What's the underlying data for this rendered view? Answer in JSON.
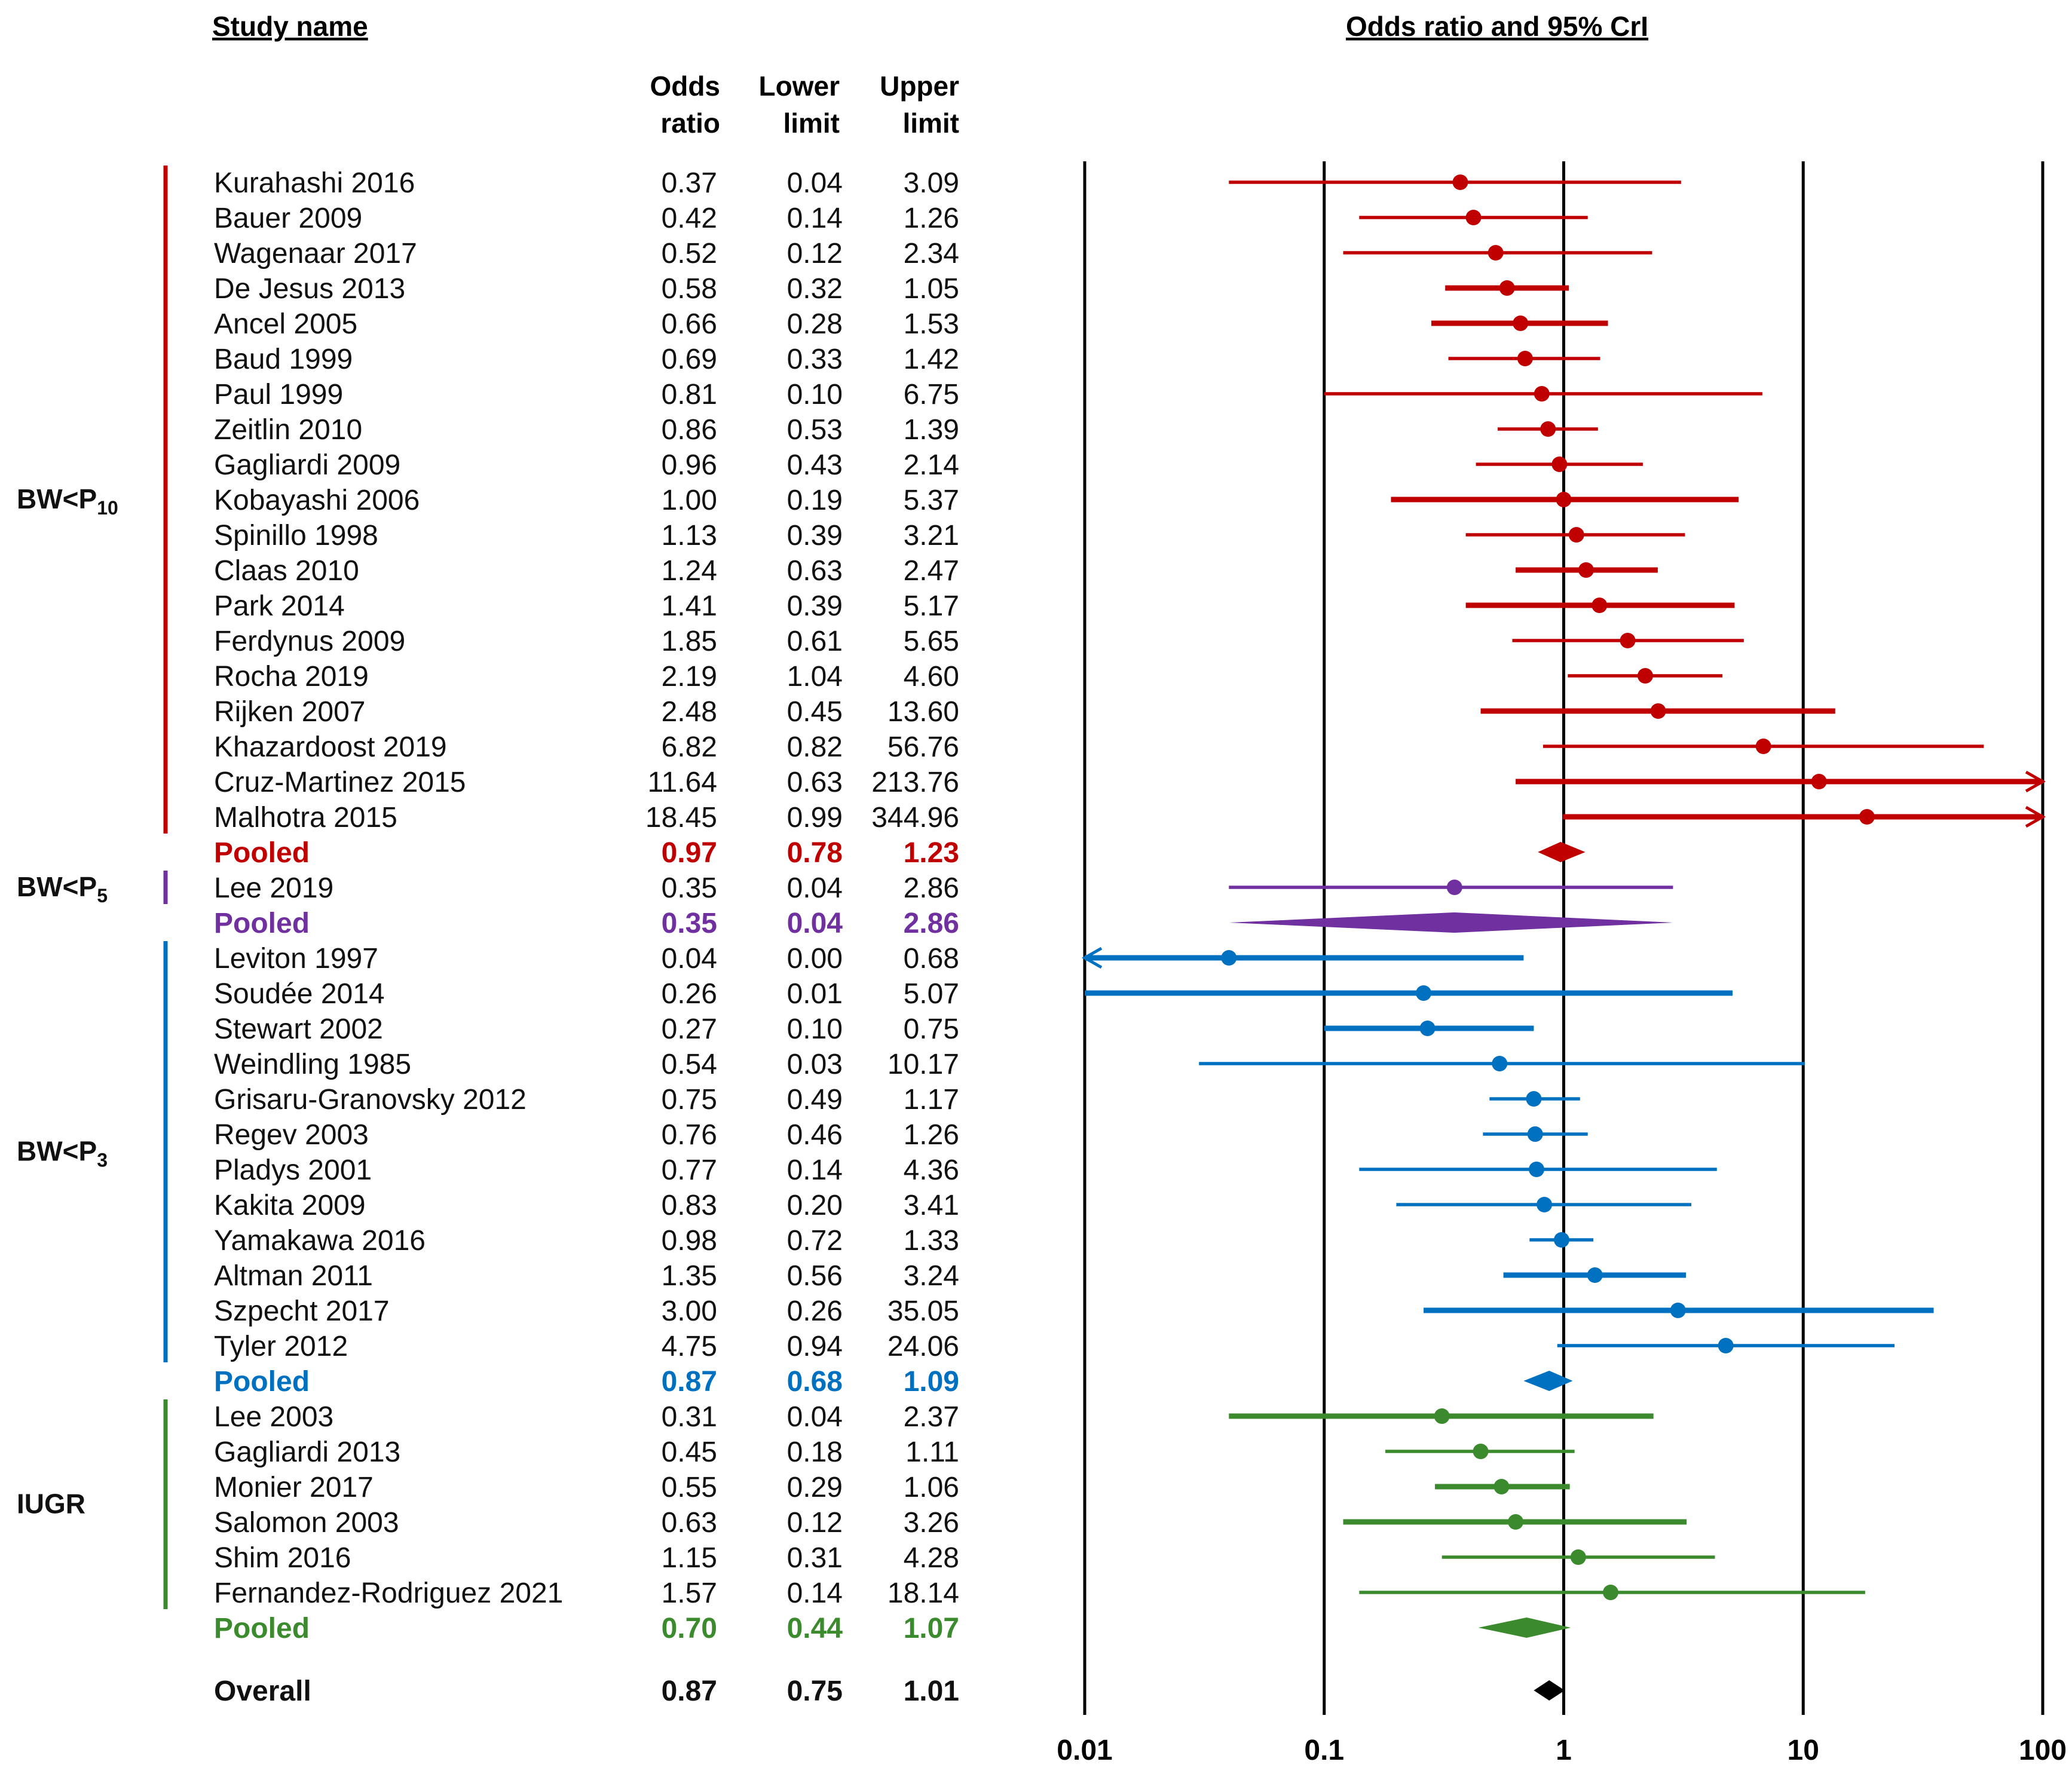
{
  "chart_data": {
    "type": "forest",
    "title": "Odds ratio and 95% CrI",
    "columns": {
      "study": "Study name",
      "or": [
        "Odds",
        "ratio"
      ],
      "lower": [
        "Lower",
        "limit"
      ],
      "upper": [
        "Upper",
        "limit"
      ]
    },
    "x_axis": {
      "scale": "log10",
      "range": [
        0.01,
        100
      ],
      "ticks": [
        "0.01",
        "0.1",
        "1",
        "10",
        "100"
      ],
      "reference_line": 1
    },
    "colors": {
      "bw10": "#c00000",
      "bw5": "#7030a0",
      "bw3": "#0070c0",
      "iugr": "#3c8a2e",
      "overall": "#000000"
    },
    "groups": [
      {
        "label": "BW<P",
        "subscript": "10",
        "color": "#c00000",
        "studies": [
          {
            "name": "Kurahashi 2016",
            "or": "0.37",
            "lower": "0.04",
            "upper": "3.09",
            "weight": "light"
          },
          {
            "name": "Bauer 2009",
            "or": "0.42",
            "lower": "0.14",
            "upper": "1.26",
            "weight": "light"
          },
          {
            "name": "Wagenaar 2017",
            "or": "0.52",
            "lower": "0.12",
            "upper": "2.34",
            "weight": "light"
          },
          {
            "name": "De Jesus 2013",
            "or": "0.58",
            "lower": "0.32",
            "upper": "1.05",
            "weight": "heavy"
          },
          {
            "name": "Ancel 2005",
            "or": "0.66",
            "lower": "0.28",
            "upper": "1.53",
            "weight": "heavy"
          },
          {
            "name": "Baud 1999",
            "or": "0.69",
            "lower": "0.33",
            "upper": "1.42",
            "weight": "light"
          },
          {
            "name": "Paul 1999",
            "or": "0.81",
            "lower": "0.10",
            "upper": "6.75",
            "weight": "light"
          },
          {
            "name": "Zeitlin 2010",
            "or": "0.86",
            "lower": "0.53",
            "upper": "1.39",
            "weight": "light"
          },
          {
            "name": "Gagliardi 2009",
            "or": "0.96",
            "lower": "0.43",
            "upper": "2.14",
            "weight": "light"
          },
          {
            "name": "Kobayashi 2006",
            "or": "1.00",
            "lower": "0.19",
            "upper": "5.37",
            "weight": "heavy"
          },
          {
            "name": "Spinillo 1998",
            "or": "1.13",
            "lower": "0.39",
            "upper": "3.21",
            "weight": "light"
          },
          {
            "name": "Claas 2010",
            "or": "1.24",
            "lower": "0.63",
            "upper": "2.47",
            "weight": "heavy"
          },
          {
            "name": "Park 2014",
            "or": "1.41",
            "lower": "0.39",
            "upper": "5.17",
            "weight": "heavy"
          },
          {
            "name": "Ferdynus 2009",
            "or": "1.85",
            "lower": "0.61",
            "upper": "5.65",
            "weight": "light"
          },
          {
            "name": "Rocha 2019",
            "or": "2.19",
            "lower": "1.04",
            "upper": "4.60",
            "weight": "light"
          },
          {
            "name": "Rijken 2007",
            "or": "2.48",
            "lower": "0.45",
            "upper": "13.60",
            "weight": "heavy"
          },
          {
            "name": "Khazardoost 2019",
            "or": "6.82",
            "lower": "0.82",
            "upper": "56.76",
            "weight": "light"
          },
          {
            "name": "Cruz-Martinez 2015",
            "or": "11.64",
            "lower": "0.63",
            "upper": "213.76",
            "weight": "heavy"
          },
          {
            "name": "Malhotra 2015",
            "or": "18.45",
            "lower": "0.99",
            "upper": "344.96",
            "weight": "heavy"
          }
        ],
        "pooled": {
          "name": "Pooled",
          "or": "0.97",
          "lower": "0.78",
          "upper": "1.23"
        }
      },
      {
        "label": "BW<P",
        "subscript": "5",
        "color": "#7030a0",
        "studies": [
          {
            "name": "Lee 2019",
            "or": "0.35",
            "lower": "0.04",
            "upper": "2.86",
            "weight": "light"
          }
        ],
        "pooled": {
          "name": "Pooled",
          "or": "0.35",
          "lower": "0.04",
          "upper": "2.86"
        }
      },
      {
        "label": "BW<P",
        "subscript": "3",
        "color": "#0070c0",
        "studies": [
          {
            "name": "Leviton 1997",
            "or": "0.04",
            "lower": "0.00",
            "upper": "0.68",
            "weight": "heavy"
          },
          {
            "name": "Soudée 2014",
            "or": "0.26",
            "lower": "0.01",
            "upper": "5.07",
            "weight": "heavy"
          },
          {
            "name": "Stewart 2002",
            "or": "0.27",
            "lower": "0.10",
            "upper": "0.75",
            "weight": "heavy"
          },
          {
            "name": "Weindling 1985",
            "or": "0.54",
            "lower": "0.03",
            "upper": "10.17",
            "weight": "light"
          },
          {
            "name": "Grisaru-Granovsky 2012",
            "or": "0.75",
            "lower": "0.49",
            "upper": "1.17",
            "weight": "light"
          },
          {
            "name": "Regev 2003",
            "or": "0.76",
            "lower": "0.46",
            "upper": "1.26",
            "weight": "light"
          },
          {
            "name": "Pladys 2001",
            "or": "0.77",
            "lower": "0.14",
            "upper": "4.36",
            "weight": "light"
          },
          {
            "name": "Kakita 2009",
            "or": "0.83",
            "lower": "0.20",
            "upper": "3.41",
            "weight": "light"
          },
          {
            "name": "Yamakawa 2016",
            "or": "0.98",
            "lower": "0.72",
            "upper": "1.33",
            "weight": "light"
          },
          {
            "name": "Altman 2011",
            "or": "1.35",
            "lower": "0.56",
            "upper": "3.24",
            "weight": "heavy"
          },
          {
            "name": "Szpecht 2017",
            "or": "3.00",
            "lower": "0.26",
            "upper": "35.05",
            "weight": "heavy"
          },
          {
            "name": "Tyler 2012",
            "or": "4.75",
            "lower": "0.94",
            "upper": "24.06",
            "weight": "light"
          }
        ],
        "pooled": {
          "name": "Pooled",
          "or": "0.87",
          "lower": "0.68",
          "upper": "1.09"
        }
      },
      {
        "label": "IUGR",
        "subscript": "",
        "color": "#3c8a2e",
        "studies": [
          {
            "name": "Lee 2003",
            "or": "0.31",
            "lower": "0.04",
            "upper": "2.37",
            "weight": "heavy"
          },
          {
            "name": "Gagliardi 2013",
            "or": "0.45",
            "lower": "0.18",
            "upper": "1.11",
            "weight": "light"
          },
          {
            "name": "Monier 2017",
            "or": "0.55",
            "lower": "0.29",
            "upper": "1.06",
            "weight": "heavy"
          },
          {
            "name": "Salomon 2003",
            "or": "0.63",
            "lower": "0.12",
            "upper": "3.26",
            "weight": "heavy"
          },
          {
            "name": "Shim 2016",
            "or": "1.15",
            "lower": "0.31",
            "upper": "4.28",
            "weight": "light"
          },
          {
            "name": "Fernandez-Rodriguez 2021",
            "or": "1.57",
            "lower": "0.14",
            "upper": "18.14",
            "weight": "light"
          }
        ],
        "pooled": {
          "name": "Pooled",
          "or": "0.70",
          "lower": "0.44",
          "upper": "1.07"
        }
      }
    ],
    "overall": {
      "name": "Overall",
      "or": "0.87",
      "lower": "0.75",
      "upper": "1.01"
    }
  }
}
